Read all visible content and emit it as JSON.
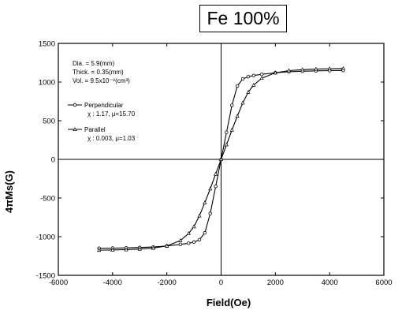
{
  "chart_data": {
    "type": "line",
    "title": "Fe 100%",
    "xlabel": "Field(Oe)",
    "ylabel": "4πMs(G)",
    "xlim": [
      -6000,
      6000
    ],
    "ylim": [
      -1500,
      1500
    ],
    "xticks": [
      -6000,
      -4000,
      -2000,
      0,
      2000,
      4000,
      6000
    ],
    "yticks": [
      -1500,
      -1000,
      -500,
      0,
      500,
      1000,
      1500
    ],
    "xtick_labels": [
      "-6000",
      "-4000",
      "-2000",
      "0",
      "2000",
      "4000",
      "6000"
    ],
    "ytick_labels": [
      "-1500",
      "-1000",
      "-500",
      "0",
      "500",
      "1000",
      "1500"
    ],
    "zero_lines": true,
    "annotations": {
      "dia": "Dia. = 5.9(mm)",
      "thick": "Thick. = 0.35(mm)",
      "vol": "Vol. = 9.5x10⁻⁹(cm³)"
    },
    "legend_position": "top-left",
    "series": [
      {
        "name": "Perpendicular",
        "param": "χ : 1.17, μ=15.70",
        "marker": "circle",
        "x": [
          -4500,
          -4000,
          -3500,
          -3000,
          -2500,
          -2000,
          -1500,
          -1200,
          -1000,
          -800,
          -600,
          -400,
          -200,
          0,
          200,
          400,
          600,
          800,
          1000,
          1200,
          1500,
          2000,
          2500,
          3000,
          3500,
          4000,
          4500
        ],
        "y": [
          -1150,
          -1148,
          -1145,
          -1140,
          -1133,
          -1120,
          -1100,
          -1085,
          -1070,
          -1040,
          -950,
          -700,
          -350,
          0,
          350,
          700,
          950,
          1040,
          1070,
          1085,
          1100,
          1120,
          1133,
          1140,
          1145,
          1148,
          1150
        ]
      },
      {
        "name": "Parallel",
        "param": "χ : 0.003, μ=1.03",
        "marker": "triangle",
        "x": [
          -4500,
          -4000,
          -3500,
          -3000,
          -2500,
          -2000,
          -1500,
          -1200,
          -1000,
          -800,
          -600,
          -400,
          -200,
          0,
          200,
          400,
          600,
          800,
          1000,
          1200,
          1500,
          2000,
          2500,
          3000,
          3500,
          4000,
          4500
        ],
        "y": [
          -1175,
          -1172,
          -1168,
          -1160,
          -1148,
          -1120,
          -1050,
          -960,
          -870,
          -730,
          -560,
          -380,
          -190,
          0,
          190,
          380,
          560,
          730,
          870,
          960,
          1050,
          1120,
          1148,
          1160,
          1168,
          1172,
          1175
        ]
      }
    ]
  }
}
